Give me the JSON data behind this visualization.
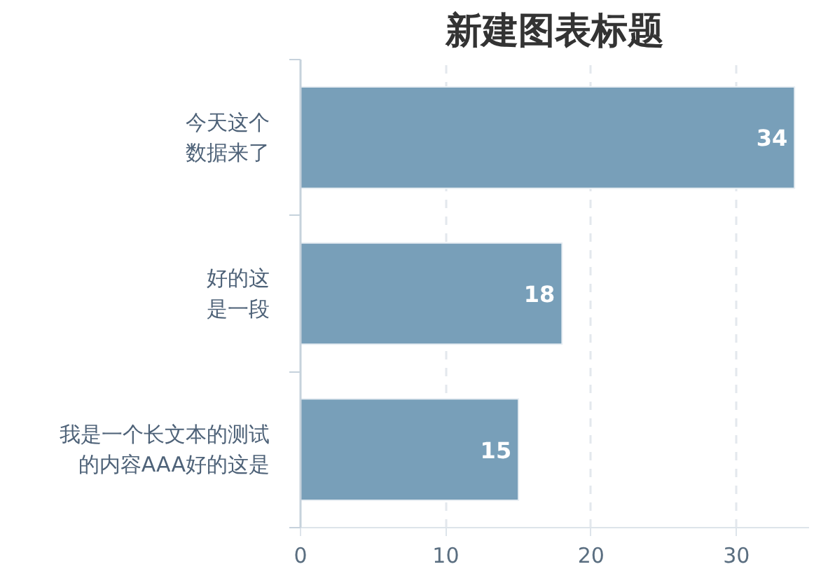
{
  "chart_data": {
    "type": "bar",
    "orientation": "horizontal",
    "title": "新建图表标题",
    "categories": [
      "今天这个数据来了",
      "好的这是一段",
      "我是一个长文本的测试的内容AAA好的这是"
    ],
    "values": [
      34,
      18,
      15
    ],
    "color": "#789fb9",
    "xlim": [
      0,
      35
    ],
    "xticks": [
      0,
      10,
      20,
      30
    ],
    "grid": "x",
    "data_labels": true
  }
}
